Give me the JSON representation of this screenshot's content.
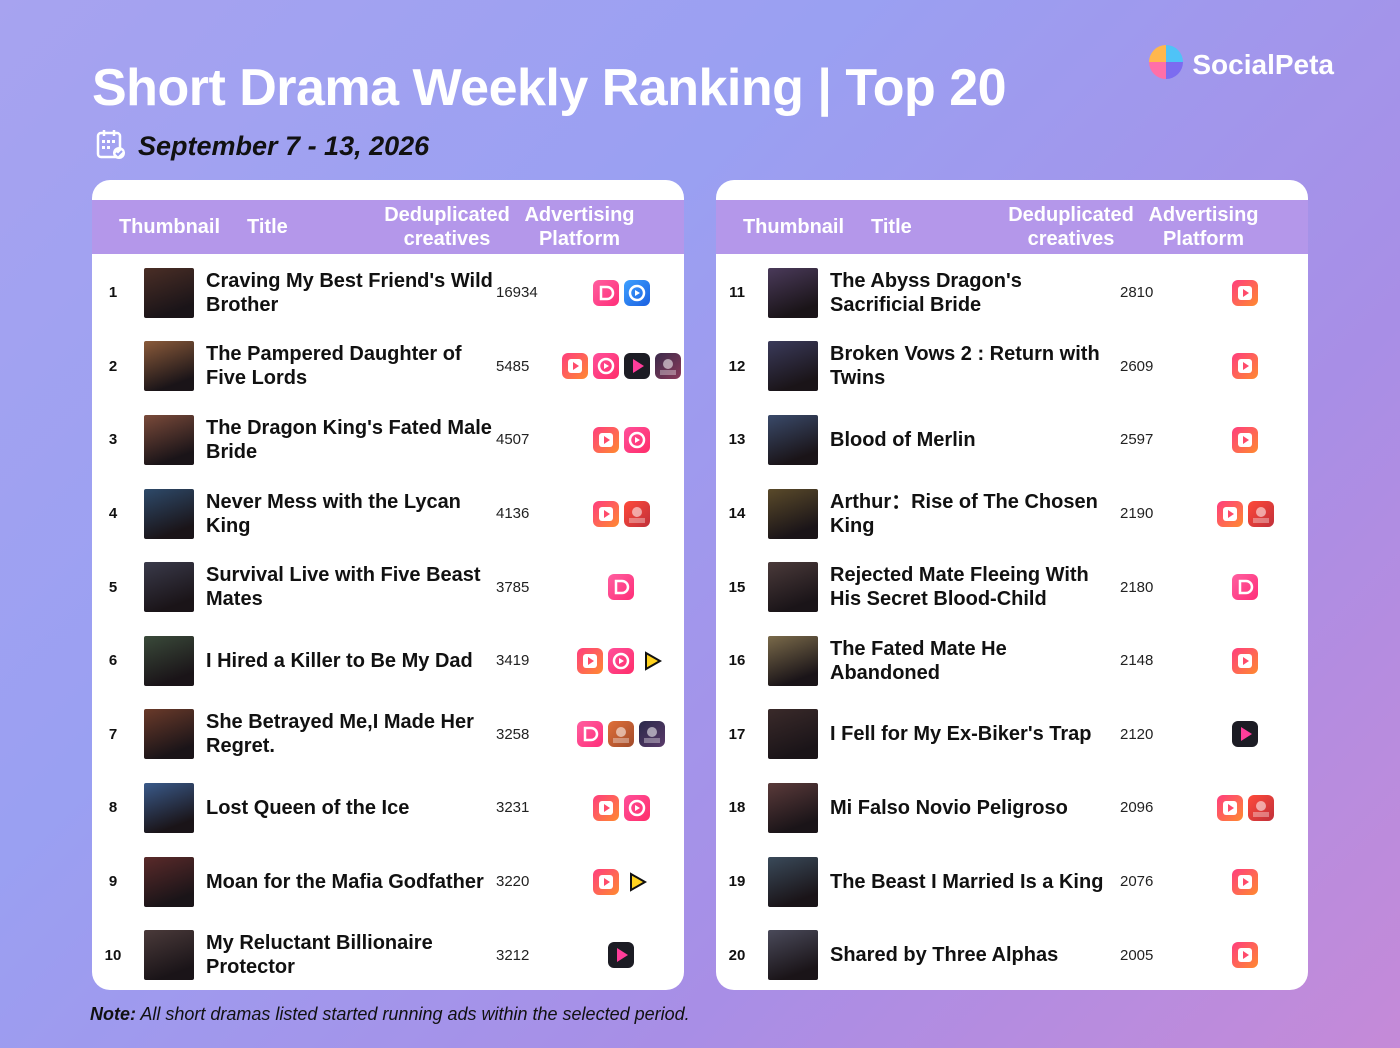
{
  "header": {
    "title": "Short Drama Weekly Ranking | Top 20",
    "date": "September 7 - 13, 2026",
    "brand": "SocialPeta"
  },
  "columns": {
    "thumbnail": "Thumbnail",
    "title": "Title",
    "creatives": "Deduplicated creatives",
    "platform": "Advertising Platform"
  },
  "rankings": [
    {
      "rank": "1",
      "title": "Craving My Best Friend's Wild Brother",
      "creatives": "16934",
      "platforms": [
        "pink-app-icon",
        "blue-app-icon"
      ],
      "thumb": "#4a2e26"
    },
    {
      "rank": "2",
      "title": "The Pampered Daughter of Five Lords",
      "creatives": "5485",
      "platforms": [
        "red-play-app-icon",
        "pink-circle-app-icon",
        "dark-play-app-icon",
        "photo-app-icon"
      ],
      "thumb": "#8a5a3a"
    },
    {
      "rank": "3",
      "title": "The Dragon King's Fated Male Bride",
      "creatives": "4507",
      "platforms": [
        "red-play-app-icon",
        "pink-circle-app-icon"
      ],
      "thumb": "#7a4a3a"
    },
    {
      "rank": "4",
      "title": "Never Mess with the Lycan King",
      "creatives": "4136",
      "platforms": [
        "red-play-app-icon",
        "red-photo-app-icon"
      ],
      "thumb": "#2e4a6a"
    },
    {
      "rank": "5",
      "title": "Survival Live with Five Beast Mates",
      "creatives": "3785",
      "platforms": [
        "pink-app-icon"
      ],
      "thumb": "#3a3a4a"
    },
    {
      "rank": "6",
      "title": "I Hired a Killer to Be My Dad",
      "creatives": "3419",
      "platforms": [
        "red-play-app-icon",
        "pink-circle-app-icon",
        "yellow-play-app-icon"
      ],
      "thumb": "#3a4a3a"
    },
    {
      "rank": "7",
      "title": "She Betrayed Me,I Made Her Regret.",
      "creatives": "3258",
      "platforms": [
        "pink-app-icon",
        "orange-photo-app-icon",
        "dark-photo-app-icon"
      ],
      "thumb": "#6a3a2a"
    },
    {
      "rank": "8",
      "title": "Lost Queen of the Ice",
      "creatives": "3231",
      "platforms": [
        "red-play-app-icon",
        "pink-circle-app-icon"
      ],
      "thumb": "#3a5a8a"
    },
    {
      "rank": "9",
      "title": "Moan for the Mafia Godfather",
      "creatives": "3220",
      "platforms": [
        "red-play-app-icon",
        "yellow-play-app-icon"
      ],
      "thumb": "#5a2a2a"
    },
    {
      "rank": "10",
      "title": "My Reluctant Billionaire Protector",
      "creatives": "3212",
      "platforms": [
        "dark-play-app-icon"
      ],
      "thumb": "#4a3a3a"
    },
    {
      "rank": "11",
      "title": "The Abyss Dragon's Sacrificial Bride",
      "creatives": "2810",
      "platforms": [
        "red-play-app-icon"
      ],
      "thumb": "#4a3a5a"
    },
    {
      "rank": "12",
      "title": "Broken Vows 2 : Return with Twins",
      "creatives": "2609",
      "platforms": [
        "red-play-app-icon"
      ],
      "thumb": "#3a3a5a"
    },
    {
      "rank": "13",
      "title": "Blood of Merlin",
      "creatives": "2597",
      "platforms": [
        "red-play-app-icon"
      ],
      "thumb": "#3a4a6a"
    },
    {
      "rank": "14",
      "title": "Arthur：Rise of The Chosen King",
      "creatives": "2190",
      "platforms": [
        "red-play-app-icon",
        "red-photo-app-icon"
      ],
      "thumb": "#5a4a2a"
    },
    {
      "rank": "15",
      "title": "Rejected Mate Fleeing With His Secret Blood-Child",
      "creatives": "2180",
      "platforms": [
        "pink-app-icon"
      ],
      "thumb": "#4a3a3a"
    },
    {
      "rank": "16",
      "title": "The Fated Mate He Abandoned",
      "creatives": "2148",
      "platforms": [
        "red-play-app-icon"
      ],
      "thumb": "#7a6a4a"
    },
    {
      "rank": "17",
      "title": "I Fell for My Ex-Biker's Trap",
      "creatives": "2120",
      "platforms": [
        "dark-play-app-icon"
      ],
      "thumb": "#3a2a2a"
    },
    {
      "rank": "18",
      "title": "Mi Falso Novio Peligroso",
      "creatives": "2096",
      "platforms": [
        "red-play-app-icon",
        "red-photo-app-icon"
      ],
      "thumb": "#5a3a3a"
    },
    {
      "rank": "19",
      "title": "The Beast I Married Is a King",
      "creatives": "2076",
      "platforms": [
        "red-play-app-icon"
      ],
      "thumb": "#3a4a5a"
    },
    {
      "rank": "20",
      "title": "Shared by Three Alphas",
      "creatives": "2005",
      "platforms": [
        "red-play-app-icon"
      ],
      "thumb": "#4a4a5a"
    }
  ],
  "note": {
    "label": "Note:",
    "text": " All short dramas listed started running ads within the selected period."
  },
  "colors": {
    "header_bar": "#b497ea",
    "accent_pink": "#ff3d7f",
    "accent_orange": "#ff7a2f"
  }
}
